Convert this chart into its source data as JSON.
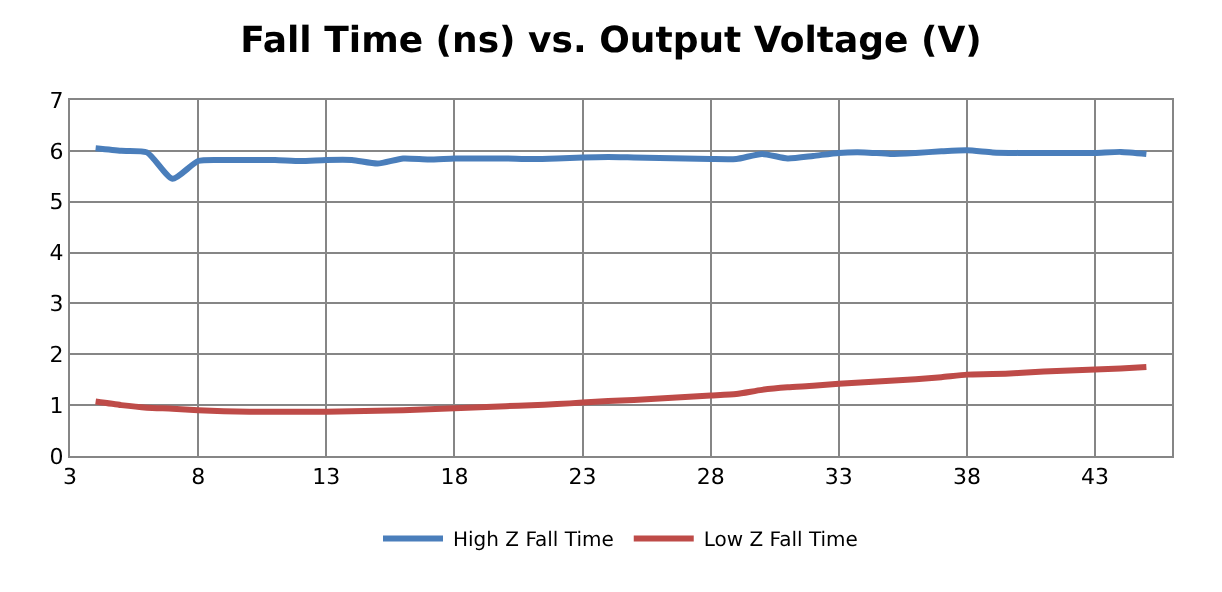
{
  "chart_data": {
    "type": "line",
    "title": "Fall Time (ns) vs. Output Voltage (V)",
    "x": [
      4,
      5,
      6,
      7,
      8,
      9,
      10,
      11,
      12,
      13,
      14,
      15,
      16,
      17,
      18,
      19,
      20,
      21,
      22,
      23,
      24,
      25,
      26,
      27,
      28,
      29,
      30,
      31,
      32,
      33,
      34,
      35,
      36,
      37,
      38,
      39,
      40,
      41,
      42,
      43,
      44,
      45
    ],
    "series": [
      {
        "name": "High Z Fall Time",
        "color": "#4a7ebb",
        "values": [
          6.05,
          6.0,
          5.97,
          5.45,
          5.8,
          5.82,
          5.82,
          5.82,
          5.8,
          5.82,
          5.82,
          5.75,
          5.85,
          5.83,
          5.85,
          5.85,
          5.85,
          5.84,
          5.85,
          5.87,
          5.88,
          5.87,
          5.86,
          5.85,
          5.84,
          5.84,
          5.94,
          5.85,
          5.9,
          5.96,
          5.97,
          5.94,
          5.96,
          5.99,
          6.01,
          5.97,
          5.96,
          5.96,
          5.96,
          5.96,
          5.98,
          5.94
        ]
      },
      {
        "name": "Low Z Fall Time",
        "color": "#be4b48",
        "values": [
          1.07,
          1.0,
          0.95,
          0.93,
          0.9,
          0.88,
          0.87,
          0.87,
          0.87,
          0.87,
          0.88,
          0.89,
          0.9,
          0.92,
          0.94,
          0.96,
          0.98,
          1.0,
          1.02,
          1.05,
          1.08,
          1.1,
          1.13,
          1.16,
          1.19,
          1.22,
          1.3,
          1.35,
          1.38,
          1.42,
          1.45,
          1.48,
          1.51,
          1.55,
          1.6,
          1.61,
          1.63,
          1.66,
          1.68,
          1.7,
          1.72,
          1.75
        ]
      }
    ],
    "xlim": [
      3,
      46
    ],
    "xticks": [
      3,
      8,
      13,
      18,
      23,
      28,
      33,
      38,
      43
    ],
    "ylim": [
      0,
      7
    ],
    "yticks": [
      0,
      1,
      2,
      3,
      4,
      5,
      6,
      7
    ],
    "grid": true,
    "legend": "bottom",
    "marker": "none",
    "line_style": "solid"
  }
}
